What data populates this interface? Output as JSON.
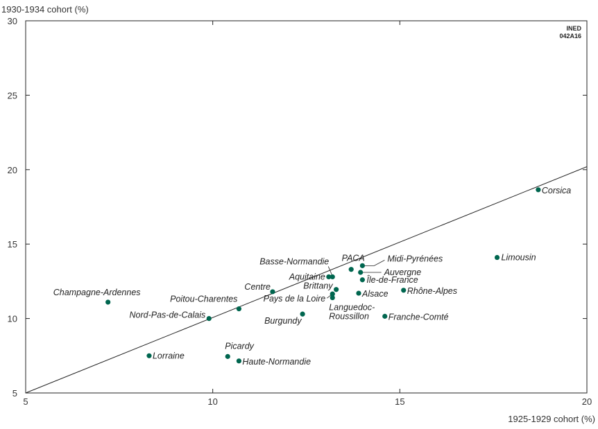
{
  "chart_data": {
    "type": "scatter",
    "title": "",
    "ylabel": "1930-1934 cohort (%)",
    "xlabel": "1925-1929 cohort (%)",
    "xlim": [
      5,
      20
    ],
    "ylim": [
      5,
      30
    ],
    "xticks": [
      5,
      10,
      15,
      20
    ],
    "yticks": [
      5,
      10,
      15,
      20,
      25,
      30
    ],
    "grid": false,
    "legend": null,
    "marker_color": "#00664f",
    "reference_line": {
      "from": [
        5,
        5
      ],
      "to": [
        20,
        20.2
      ]
    },
    "watermark": [
      "INED",
      "042A16"
    ],
    "points": [
      {
        "name": "Corsica",
        "x": 18.7,
        "y": 18.65
      },
      {
        "name": "Limousin",
        "x": 17.6,
        "y": 14.1
      },
      {
        "name": "Champagne-Ardennes",
        "x": 7.2,
        "y": 11.1
      },
      {
        "name": "Lorraine",
        "x": 8.3,
        "y": 7.5
      },
      {
        "name": "Nord-Pas-de-Calais",
        "x": 9.9,
        "y": 10.0
      },
      {
        "name": "Poitou-Charentes",
        "x": 10.7,
        "y": 10.65
      },
      {
        "name": "Centre",
        "x": 11.6,
        "y": 11.8
      },
      {
        "name": "Picardy",
        "x": 10.4,
        "y": 7.45
      },
      {
        "name": "Haute-Normandie",
        "x": 10.7,
        "y": 7.15
      },
      {
        "name": "Burgundy",
        "x": 12.4,
        "y": 10.3
      },
      {
        "name": "Basse-Normandie",
        "x": 13.2,
        "y": 12.8
      },
      {
        "name": "Aquitaine",
        "x": 13.1,
        "y": 12.8
      },
      {
        "name": "Brittany",
        "x": 13.3,
        "y": 11.95
      },
      {
        "name": "Pays de la Loire",
        "x": 13.2,
        "y": 11.65
      },
      {
        "name": "Languedoc-Roussillon",
        "x": 13.2,
        "y": 11.4
      },
      {
        "name": "PACA",
        "x": 13.7,
        "y": 13.3
      },
      {
        "name": "Midi-Pyrénées",
        "x": 14.0,
        "y": 13.55
      },
      {
        "name": "Auvergne",
        "x": 13.95,
        "y": 13.1
      },
      {
        "name": "Île-de-France",
        "x": 14.0,
        "y": 12.6
      },
      {
        "name": "Alsace",
        "x": 13.9,
        "y": 11.7
      },
      {
        "name": "Rhône-Alpes",
        "x": 15.1,
        "y": 11.9
      },
      {
        "name": "Franche-Comté",
        "x": 14.6,
        "y": 10.15
      }
    ]
  }
}
